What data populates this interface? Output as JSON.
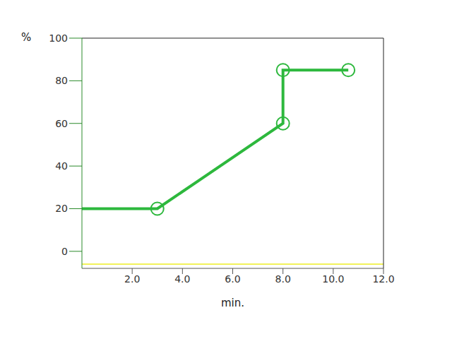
{
  "chart_data": {
    "type": "line",
    "x_label": "min.",
    "y_label": "%",
    "xlim": [
      0,
      12
    ],
    "xticks": [
      {
        "value": 2,
        "label": "2.0"
      },
      {
        "value": 4,
        "label": "4.0"
      },
      {
        "value": 6,
        "label": "6.0"
      },
      {
        "value": 8,
        "label": "8.0"
      },
      {
        "value": 10,
        "label": "10.0"
      },
      {
        "value": 12,
        "label": "12.0"
      }
    ],
    "ylim": [
      -8,
      100
    ],
    "yticks": [
      0,
      20,
      40,
      60,
      80,
      100
    ],
    "grid": false,
    "series": [
      {
        "color": "#2db83d",
        "marker": "circle",
        "x": [
          0,
          3,
          8,
          8,
          10.6
        ],
        "values": [
          20,
          20,
          60,
          85,
          85
        ]
      },
      {
        "color": "#f2f25a",
        "x": [
          0,
          12
        ],
        "values": [
          -6,
          -6
        ]
      }
    ]
  }
}
